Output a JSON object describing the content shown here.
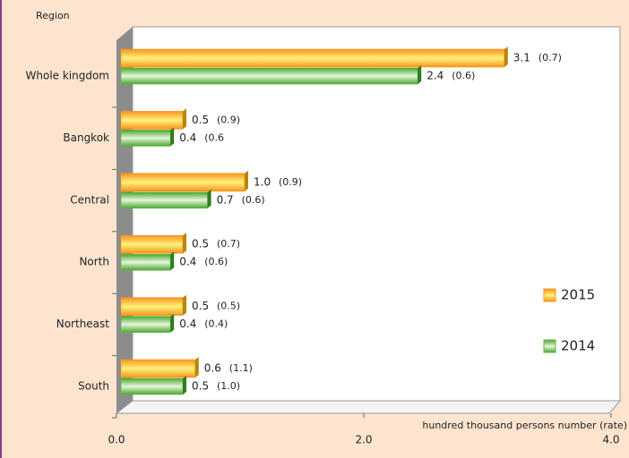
{
  "chart_data": {
    "type": "hbar",
    "y_axis_label": "Region",
    "x_axis_label": "hundred thousand persons number (rate)",
    "categories": [
      "Whole kingdom",
      "Bangkok",
      "Central",
      "North",
      "Northeast",
      "South"
    ],
    "series": [
      {
        "name": "2015",
        "color": "#f7941d",
        "label_color": "#e8731a",
        "values": [
          3.1,
          0.5,
          1.0,
          0.5,
          0.5,
          0.6
        ],
        "value_labels": [
          "3.1",
          "0.5",
          "1.0",
          "0.5",
          "0.5",
          "0.6"
        ],
        "rate_labels": [
          "(0.7)",
          "(0.9)",
          "(0.9)",
          "(0.7)",
          "(0.5)",
          "(1.1)"
        ]
      },
      {
        "name": "2014",
        "color": "#5cb83a",
        "label_color": "#1f8a2e",
        "values": [
          2.4,
          0.4,
          0.7,
          0.4,
          0.4,
          0.5
        ],
        "value_labels": [
          "2.4",
          "0.4",
          "0.7",
          "0.4",
          "0.4",
          "0.5"
        ],
        "rate_labels": [
          "(0.6)",
          "(0.6",
          "(0.6)",
          "(0.6)",
          "(0.4)",
          "(1.0)"
        ]
      }
    ],
    "xlim": [
      0,
      4
    ],
    "xticks": [
      {
        "value": 0,
        "label": "0.0"
      },
      {
        "value": 2,
        "label": "2.0"
      },
      {
        "value": 4,
        "label": "4.0"
      }
    ],
    "tick_color": "#e07020"
  }
}
